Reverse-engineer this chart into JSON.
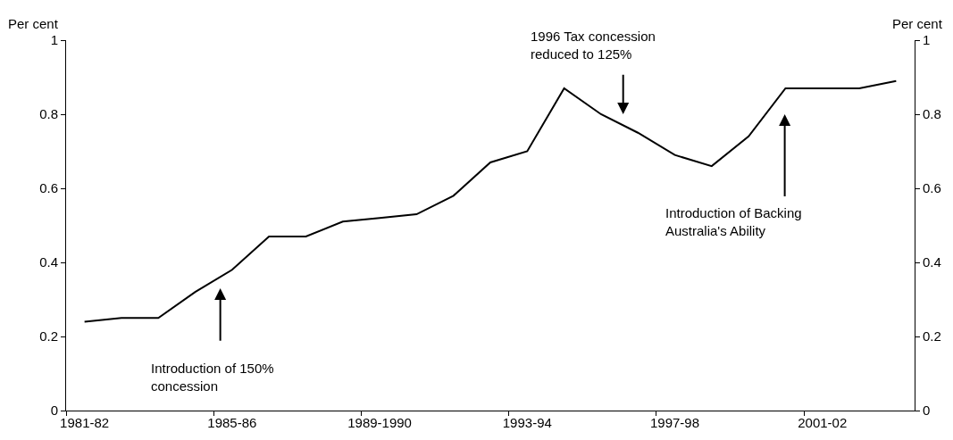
{
  "chart_data": {
    "type": "line",
    "ylabel": "Per cent",
    "y2label": "Per cent",
    "categories": [
      "1981-82",
      null,
      null,
      null,
      "1985-86",
      null,
      null,
      null,
      "1989-1990",
      null,
      null,
      null,
      "1993-94",
      null,
      null,
      null,
      "1997-98",
      null,
      null,
      null,
      "2001-02",
      null,
      null
    ],
    "series": [
      {
        "color": "#000000",
        "values": [
          0.24,
          0.25,
          0.25,
          0.32,
          0.38,
          0.47,
          0.47,
          0.51,
          0.52,
          0.53,
          0.58,
          0.67,
          0.7,
          0.87,
          0.8,
          0.75,
          0.69,
          0.66,
          0.74,
          0.87,
          0.87,
          0.87,
          0.89
        ]
      }
    ],
    "ylim": [
      0,
      1
    ],
    "yticks": [
      0,
      0.2,
      0.4,
      0.6,
      0.8,
      1
    ],
    "y2lim": [
      0,
      1
    ],
    "y2ticks": [
      0,
      0.2,
      0.4,
      0.6,
      0.8,
      1
    ],
    "annotations": [
      "Introduction of 150%\nconcession",
      "1996 Tax concession\nreduced to 125%",
      "Introduction of Backing\nAustralia's Ability"
    ],
    "marker": "none",
    "line_style": "solid"
  }
}
